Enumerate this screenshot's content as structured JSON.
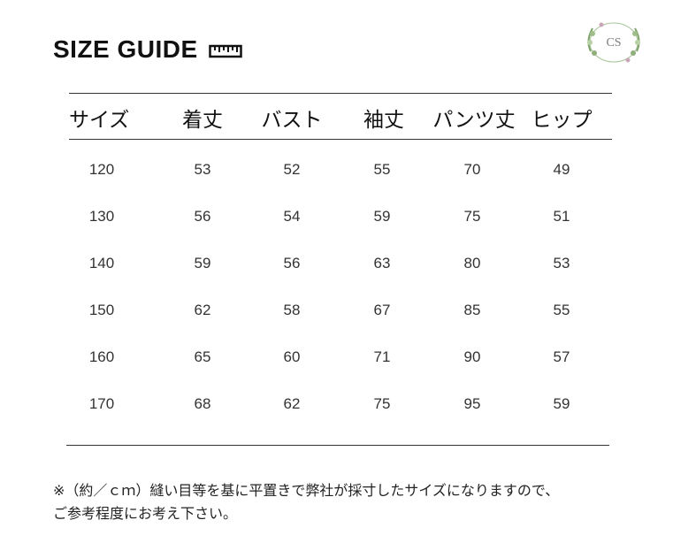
{
  "title": "SIZE GUIDE",
  "icons": {
    "ruler": "ruler-icon",
    "logo": "brand-logo"
  },
  "logo": {
    "monogram": "CS"
  },
  "table": {
    "headers": [
      "サイズ",
      "着丈",
      "バスト",
      "袖丈",
      "パンツ丈",
      "ヒップ"
    ],
    "rows": [
      [
        "120",
        "53",
        "52",
        "55",
        "70",
        "49"
      ],
      [
        "130",
        "56",
        "54",
        "59",
        "75",
        "51"
      ],
      [
        "140",
        "59",
        "56",
        "63",
        "80",
        "53"
      ],
      [
        "150",
        "62",
        "58",
        "67",
        "85",
        "55"
      ],
      [
        "160",
        "65",
        "60",
        "71",
        "90",
        "57"
      ],
      [
        "170",
        "68",
        "62",
        "75",
        "95",
        "59"
      ]
    ]
  },
  "note": {
    "line1": "※（約／ｃｍ）縫い目等を基に平置きで弊社が採寸したサイズになりますので、",
    "line2": "ご参考程度にお考え下さい。"
  }
}
